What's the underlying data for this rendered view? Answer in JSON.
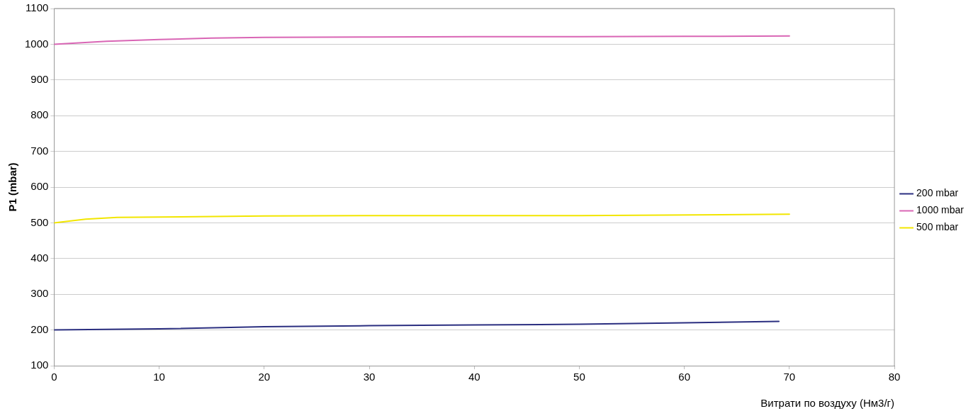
{
  "chart_data": {
    "type": "line",
    "xlabel": "Витрати по воздуху (Нм3/г)",
    "ylabel": "P1 (mbar)",
    "xlim": [
      0,
      80
    ],
    "xticks": [
      0,
      10,
      20,
      30,
      40,
      50,
      60,
      70,
      80
    ],
    "ylim": [
      100,
      1100
    ],
    "yticks": [
      100,
      200,
      300,
      400,
      500,
      600,
      700,
      800,
      900,
      1000,
      1100
    ],
    "grid": "y",
    "legend": "right",
    "marker": "none",
    "line_style": "solid",
    "series": [
      {
        "name": "200 mbar",
        "color": "#2b2f80",
        "x": [
          0,
          10,
          20,
          30,
          40,
          50,
          60,
          69
        ],
        "values": [
          200,
          203,
          209,
          212,
          214,
          216,
          220,
          224
        ]
      },
      {
        "name": "1000 mbar",
        "color": "#d966b5",
        "x": [
          0,
          5,
          10,
          15,
          20,
          30,
          40,
          50,
          60,
          70
        ],
        "values": [
          1000,
          1008,
          1013,
          1017,
          1019,
          1020,
          1021,
          1021,
          1022,
          1023
        ]
      },
      {
        "name": "500 mbar",
        "color": "#f2e600",
        "x": [
          0,
          3,
          6,
          10,
          20,
          30,
          50,
          70
        ],
        "values": [
          500,
          510,
          515,
          516,
          519,
          520,
          520,
          524
        ]
      }
    ]
  }
}
